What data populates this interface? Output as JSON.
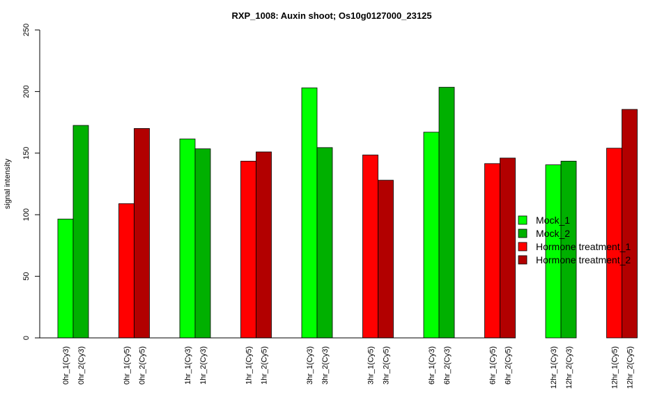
{
  "chart_data": {
    "type": "bar",
    "title": "RXP_1008: Auxin shoot; Os10g0127000_23125",
    "xlabel": "",
    "ylabel": "signal intensity",
    "ylim": [
      0,
      250
    ],
    "yticks": [
      0,
      50,
      100,
      150,
      200,
      250
    ],
    "grid": false,
    "legend_position": "right",
    "categories": [
      "0hr_1(Cy3)",
      "0hr_2(Cy3)",
      "0hr_1(Cy5)",
      "0hr_2(Cy5)",
      "1hr_1(Cy3)",
      "1hr_2(Cy3)",
      "1hr_1(Cy5)",
      "1hr_2(Cy5)",
      "3hr_1(Cy3)",
      "3hr_2(Cy3)",
      "3hr_1(Cy5)",
      "3hr_2(Cy5)",
      "6hr_1(Cy3)",
      "6hr_2(Cy3)",
      "6hr_1(Cy5)",
      "6hr_2(Cy5)",
      "12hr_1(Cy3)",
      "12hr_2(Cy3)",
      "12hr_1(Cy5)",
      "12hr_2(Cy5)"
    ],
    "values": [
      96.5,
      172.5,
      109,
      170,
      161.5,
      153.5,
      143.5,
      151,
      203,
      154.5,
      148.5,
      128,
      167,
      203.5,
      141.5,
      146,
      140.5,
      143.5,
      154,
      185.5
    ],
    "bar_series": [
      "Mock_1",
      "Mock_2",
      "Hormone treatment_1",
      "Hormone treatment_2",
      "Mock_1",
      "Mock_2",
      "Hormone treatment_1",
      "Hormone treatment_2",
      "Mock_1",
      "Mock_2",
      "Hormone treatment_1",
      "Hormone treatment_2",
      "Mock_1",
      "Mock_2",
      "Hormone treatment_1",
      "Hormone treatment_2",
      "Mock_1",
      "Mock_2",
      "Hormone treatment_1",
      "Hormone treatment_2"
    ],
    "legend": [
      {
        "name": "Mock_1",
        "color": "#00ff00"
      },
      {
        "name": "Mock_2",
        "color": "#00b000"
      },
      {
        "name": "Hormone treatment_1",
        "color": "#ff0000"
      },
      {
        "name": "Hormone treatment_2",
        "color": "#b20000"
      }
    ]
  }
}
